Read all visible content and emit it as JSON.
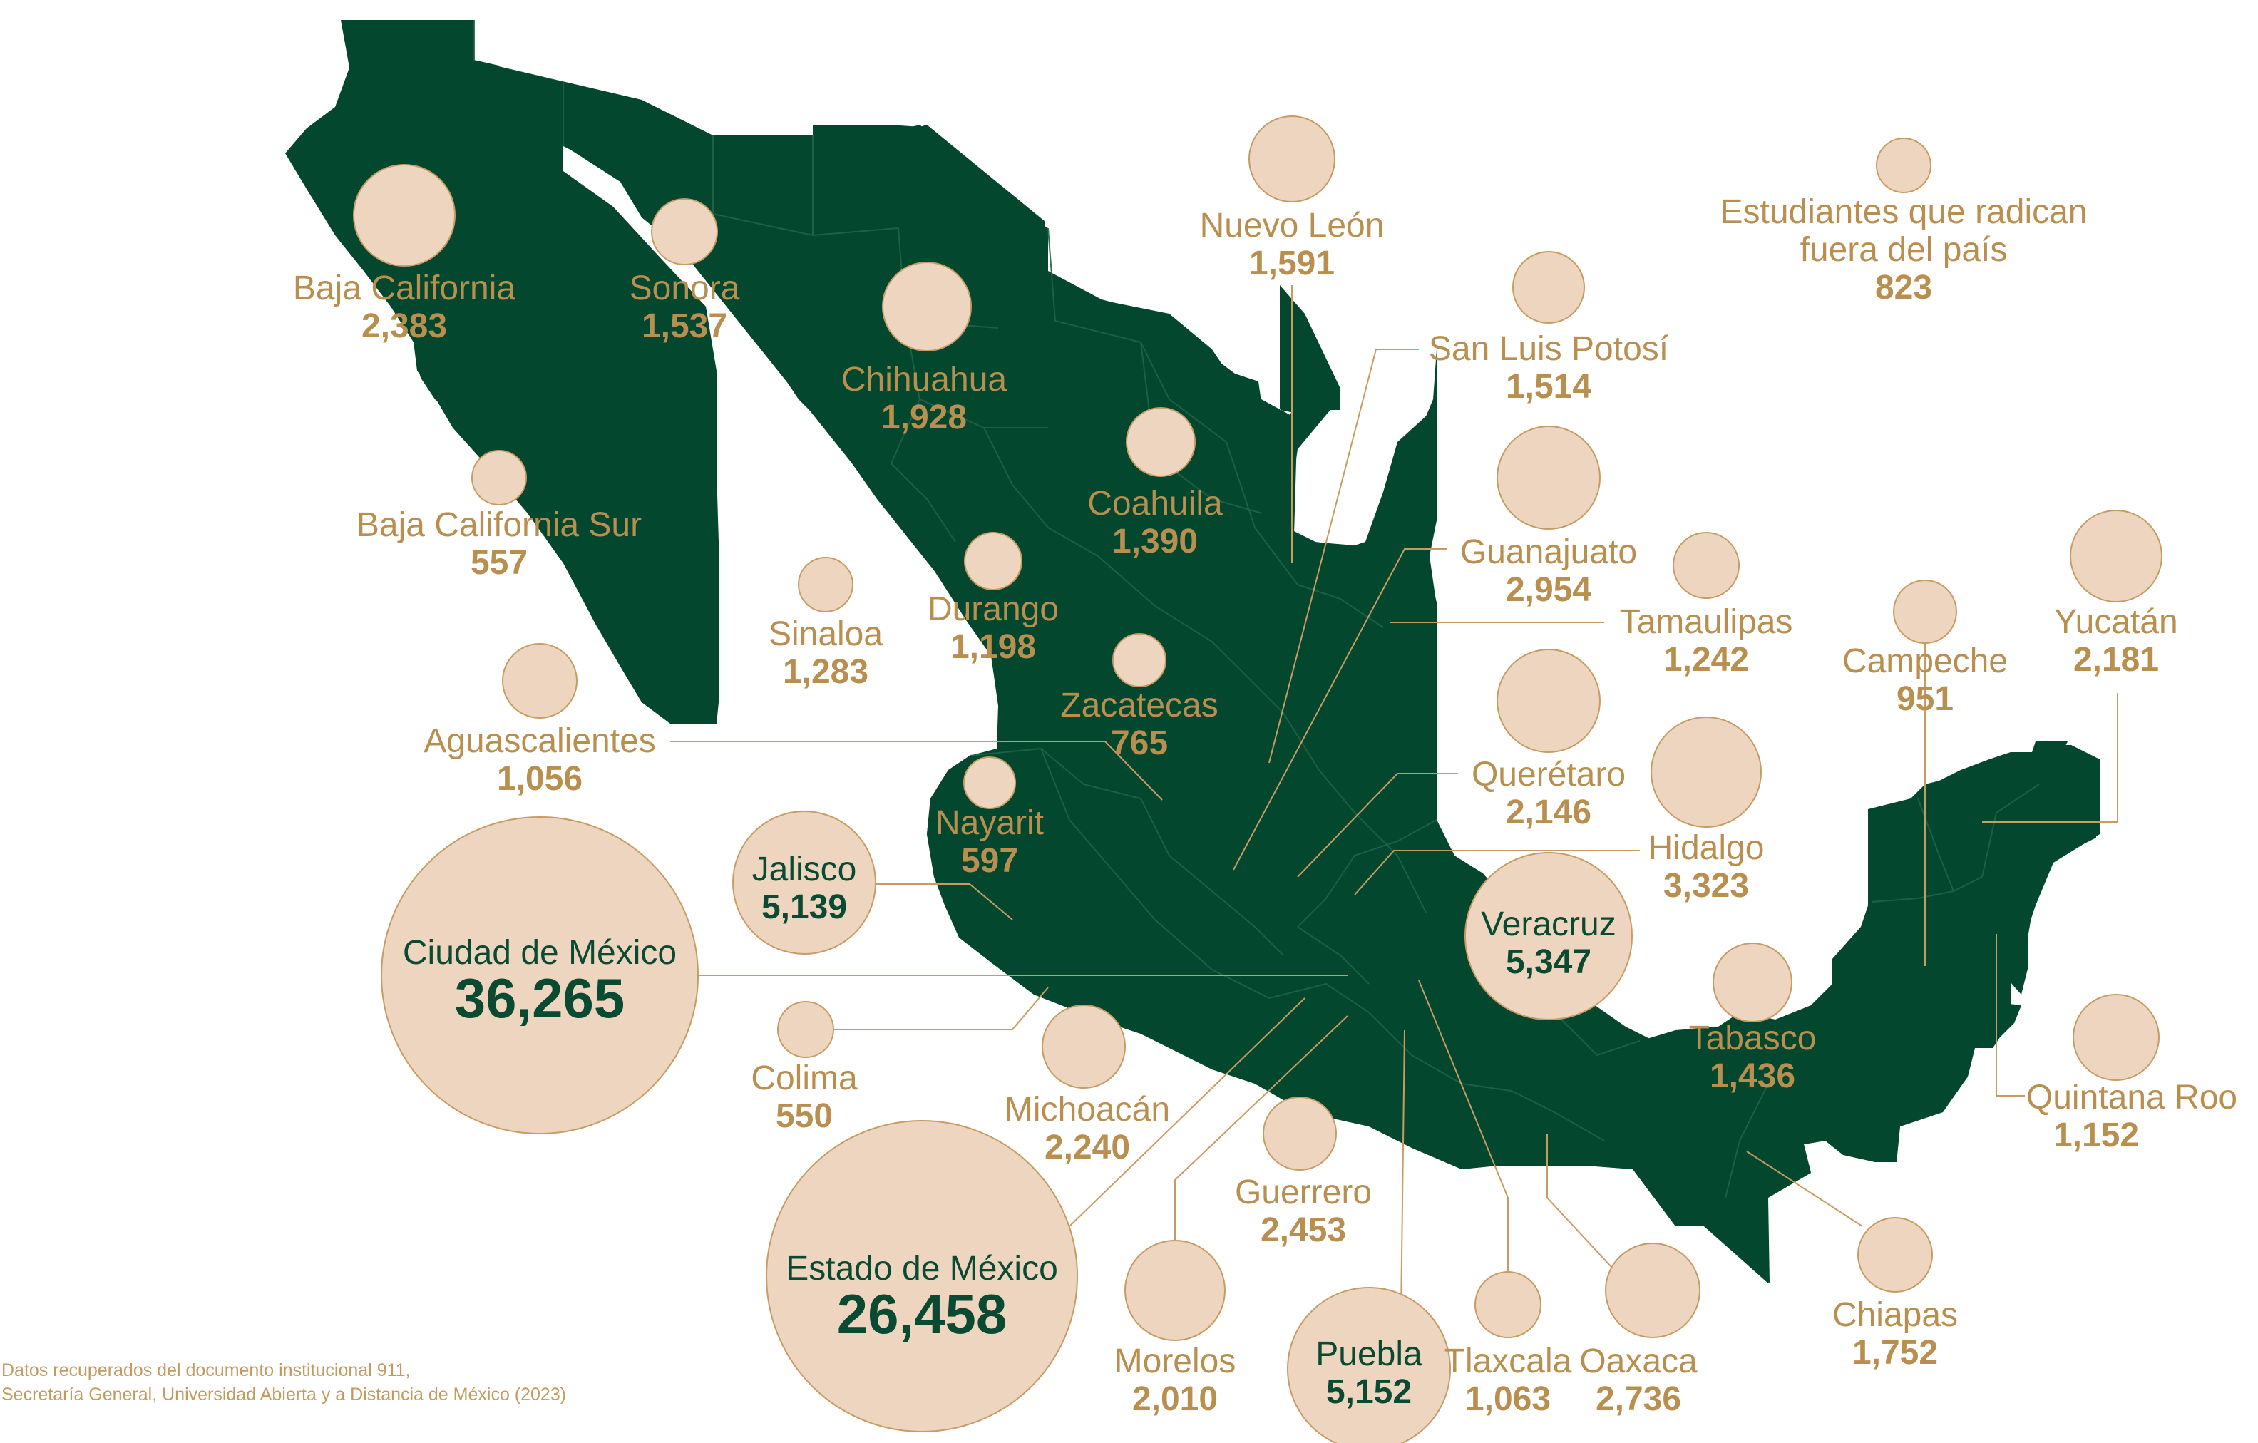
{
  "colors": {
    "map_fill": "#04472f",
    "bubble_fill": "#eed5c0",
    "bubble_stroke": "#c69c62",
    "label_gold": "#b98f4f",
    "label_dark": "#0a4a32"
  },
  "states": [
    {
      "id": "baja-california",
      "name": "Baja California",
      "value": "2,383"
    },
    {
      "id": "sonora",
      "name": "Sonora",
      "value": "1,537"
    },
    {
      "id": "chihuahua",
      "name": "Chihuahua",
      "value": "1,928"
    },
    {
      "id": "nuevo-leon",
      "name": "Nuevo León",
      "value": "1,591"
    },
    {
      "id": "extranjero",
      "name_lines": [
        "Estudiantes que radican",
        "fuera del país"
      ],
      "value": "823"
    },
    {
      "id": "san-luis-potosi",
      "name": "San Luis Potosí",
      "value": "1,514"
    },
    {
      "id": "coahuila",
      "name": "Coahuila",
      "value": "1,390"
    },
    {
      "id": "baja-california-sur",
      "name": "Baja California Sur",
      "value": "557"
    },
    {
      "id": "guanajuato",
      "name": "Guanajuato",
      "value": "2,954"
    },
    {
      "id": "durango",
      "name": "Durango",
      "value": "1,198"
    },
    {
      "id": "sinaloa",
      "name": "Sinaloa",
      "value": "1,283"
    },
    {
      "id": "tamaulipas",
      "name": "Tamaulipas",
      "value": "1,242"
    },
    {
      "id": "campeche",
      "name": "Campeche",
      "value": "951"
    },
    {
      "id": "yucatan",
      "name": "Yucatán",
      "value": "2,181"
    },
    {
      "id": "zacatecas",
      "name": "Zacatecas",
      "value": "765"
    },
    {
      "id": "aguascalientes",
      "name": "Aguascalientes",
      "value": "1,056"
    },
    {
      "id": "queretaro",
      "name": "Querétaro",
      "value": "2,146"
    },
    {
      "id": "nayarit",
      "name": "Nayarit",
      "value": "597"
    },
    {
      "id": "hidalgo",
      "name": "Hidalgo",
      "value": "3,323"
    },
    {
      "id": "jalisco",
      "name": "Jalisco",
      "value": "5,139"
    },
    {
      "id": "veracruz",
      "name": "Veracruz",
      "value": "5,347"
    },
    {
      "id": "ciudad-de-mexico",
      "name": "Ciudad de México",
      "value": "36,265"
    },
    {
      "id": "tabasco",
      "name": "Tabasco",
      "value": "1,436"
    },
    {
      "id": "colima",
      "name": "Colima",
      "value": "550"
    },
    {
      "id": "quintana-roo",
      "name": "Quintana Roo",
      "value": "1,152"
    },
    {
      "id": "michoacan",
      "name": "Michoacán",
      "value": "2,240"
    },
    {
      "id": "guerrero",
      "name": "Guerrero",
      "value": "2,453"
    },
    {
      "id": "estado-de-mexico",
      "name": "Estado de México",
      "value": "26,458"
    },
    {
      "id": "chiapas",
      "name": "Chiapas",
      "value": "1,752"
    },
    {
      "id": "morelos",
      "name": "Morelos",
      "value": "2,010"
    },
    {
      "id": "puebla",
      "name": "Puebla",
      "value": "5,152"
    },
    {
      "id": "tlaxcala",
      "name": "Tlaxcala",
      "value": "1,063"
    },
    {
      "id": "oaxaca",
      "name": "Oaxaca",
      "value": "2,736"
    }
  ],
  "footnote": {
    "line1": "Datos recuperados del documento institucional 911,",
    "line2": "Secretaría General, Universidad Abierta y a Distancia de México (2023)"
  }
}
